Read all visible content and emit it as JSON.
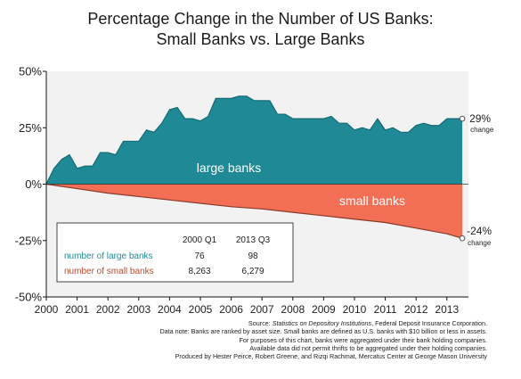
{
  "chart_data": {
    "type": "area",
    "title": "Percentage Change in the Number of US Banks:",
    "subtitle": "Small Banks vs. Large Banks",
    "yticks": [
      "50%",
      "25%",
      "0%",
      "-25%",
      "-50%"
    ],
    "ylim": [
      -50,
      50
    ],
    "xticks": [
      "2000",
      "2001",
      "2002",
      "2003",
      "2004",
      "2005",
      "2006",
      "2007",
      "2008",
      "2009",
      "2010",
      "2011",
      "2012",
      "2013"
    ],
    "xlim": [
      2000,
      2013.7
    ],
    "series": [
      {
        "name": "large banks",
        "color": "#1f8a96",
        "x": [
          2000.0,
          2000.25,
          2000.5,
          2000.75,
          2001.0,
          2001.25,
          2001.5,
          2001.75,
          2002.0,
          2002.25,
          2002.5,
          2002.75,
          2003.0,
          2003.25,
          2003.5,
          2003.75,
          2004.0,
          2004.25,
          2004.5,
          2004.75,
          2005.0,
          2005.25,
          2005.5,
          2005.75,
          2006.0,
          2006.25,
          2006.5,
          2006.75,
          2007.0,
          2007.25,
          2007.5,
          2007.75,
          2008.0,
          2008.25,
          2008.5,
          2008.75,
          2009.0,
          2009.25,
          2009.5,
          2009.75,
          2010.0,
          2010.25,
          2010.5,
          2010.75,
          2011.0,
          2011.25,
          2011.5,
          2011.75,
          2012.0,
          2012.25,
          2012.5,
          2012.75,
          2013.0,
          2013.25,
          2013.5
        ],
        "y": [
          0,
          7,
          11,
          13,
          7,
          8,
          8,
          14,
          14,
          13,
          19,
          19,
          19,
          24,
          23,
          27,
          33,
          34,
          29,
          29,
          28,
          30,
          38,
          38,
          38,
          39,
          39,
          37,
          37,
          37,
          31,
          31,
          29,
          29,
          29,
          29,
          29,
          30,
          27,
          27,
          24,
          25,
          24,
          29,
          24,
          25,
          23,
          23,
          26,
          27,
          26,
          26,
          29,
          29,
          29
        ]
      },
      {
        "name": "small banks",
        "color": "#f26f55",
        "x": [
          2000,
          2001,
          2002,
          2003,
          2004,
          2005,
          2006,
          2007,
          2008,
          2009,
          2010,
          2011,
          2012,
          2013,
          2013.5
        ],
        "y": [
          0,
          -2,
          -4,
          -5.5,
          -7,
          -8.5,
          -10,
          -11,
          -12.5,
          -14,
          -15.5,
          -17,
          -19.5,
          -22,
          -24
        ]
      }
    ],
    "annotations": {
      "large_label": "large banks",
      "small_label": "small banks",
      "end_large_value": "29%",
      "end_large_sub": "change",
      "end_small_value": "-24%",
      "end_small_sub": "change"
    },
    "table": {
      "headers": [
        "",
        "2000 Q1",
        "2013 Q3"
      ],
      "rows": [
        {
          "label": "number of large banks",
          "values": [
            "76",
            "98"
          ],
          "color": "#1f8a96"
        },
        {
          "label": "number of small banks",
          "values": [
            "8,263",
            "6,279"
          ],
          "color": "#c0492f"
        }
      ]
    }
  },
  "notes": {
    "line1_prefix": "Source: ",
    "line1_italic": "Statistics on Depository Institutions",
    "line1_suffix": ", Federal Deposit Insurance Corporation.",
    "line2": "Data note: Banks are ranked by asset size. Small banks are defined as U.S. banks with $10 billion or less in assets.",
    "line3": "For purposes of this chart, banks were aggregated under their bank holding companies.",
    "line4": "Available data did not permit thrifts to be aggregated under their holding companies.",
    "line5": "Produced by Hester Peirce, Robert Greene, and Rizqi Rachmat, Mercatus Center at George Mason University"
  }
}
